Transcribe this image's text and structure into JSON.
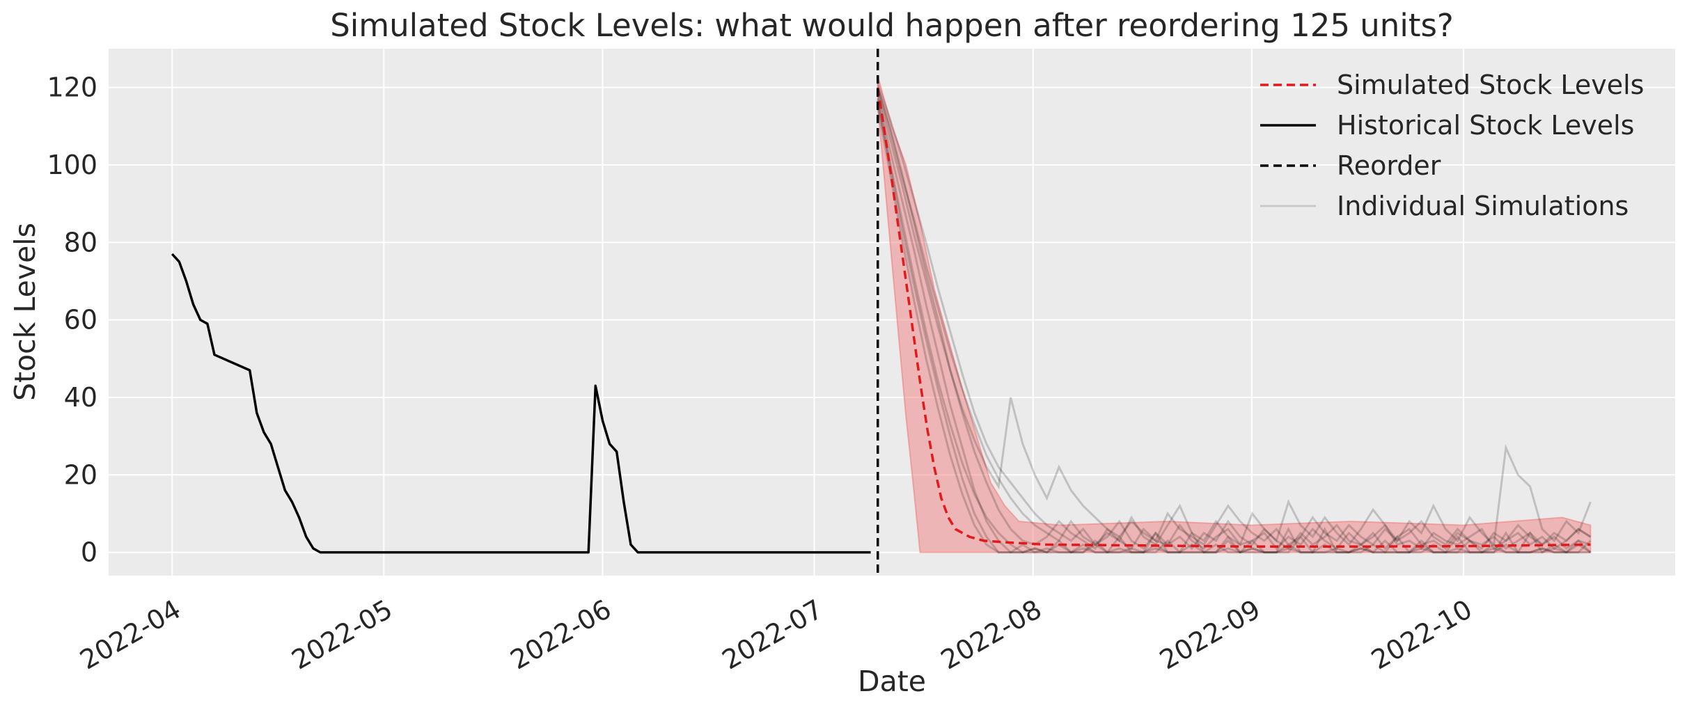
{
  "chart_data": {
    "type": "line",
    "title": "Simulated Stock Levels: what would happen after reordering 125 units?",
    "xlabel": "Date",
    "ylabel": "Stock Levels",
    "xlim": [
      "2022-03-23",
      "2022-10-31"
    ],
    "ylim": [
      -6,
      130
    ],
    "yticks": [
      0,
      20,
      40,
      60,
      80,
      100,
      120
    ],
    "xticks": [
      "2022-04-01",
      "2022-05-01",
      "2022-06-01",
      "2022-07-01",
      "2022-08-01",
      "2022-09-01",
      "2022-10-01"
    ],
    "xtick_labels": [
      "2022-04",
      "2022-05",
      "2022-06",
      "2022-07",
      "2022-08",
      "2022-09",
      "2022-10"
    ],
    "grid": true,
    "legend_position": "top-right",
    "reorder_date": "2022-07-10",
    "legend": [
      {
        "label": "Simulated Stock Levels",
        "style": "dashed",
        "color": "#e31a1c"
      },
      {
        "label": "Historical Stock Levels",
        "style": "solid",
        "color": "#000000"
      },
      {
        "label": "Reorder",
        "style": "dashed",
        "color": "#000000"
      },
      {
        "label": "Individual Simulations",
        "style": "solid",
        "color": "#bbbbbb"
      }
    ],
    "colors": {
      "simulated": "#e31a1c",
      "band": "#f08080",
      "historical": "#000000",
      "simulations": "#000000",
      "background": "#ebebeb",
      "grid": "#ffffff"
    },
    "historical": [
      [
        "2022-04-01",
        77
      ],
      [
        "2022-04-02",
        75
      ],
      [
        "2022-04-03",
        70
      ],
      [
        "2022-04-04",
        64
      ],
      [
        "2022-04-05",
        60
      ],
      [
        "2022-04-06",
        59
      ],
      [
        "2022-04-07",
        51
      ],
      [
        "2022-04-12",
        47
      ],
      [
        "2022-04-13",
        36
      ],
      [
        "2022-04-14",
        31
      ],
      [
        "2022-04-15",
        28
      ],
      [
        "2022-04-16",
        22
      ],
      [
        "2022-04-17",
        16
      ],
      [
        "2022-04-18",
        13
      ],
      [
        "2022-04-19",
        9
      ],
      [
        "2022-04-20",
        4
      ],
      [
        "2022-04-21",
        1
      ],
      [
        "2022-04-22",
        0
      ],
      [
        "2022-05-30",
        0
      ],
      [
        "2022-05-31",
        43
      ],
      [
        "2022-06-01",
        34
      ],
      [
        "2022-06-02",
        28
      ],
      [
        "2022-06-03",
        26
      ],
      [
        "2022-06-04",
        13
      ],
      [
        "2022-06-05",
        2
      ],
      [
        "2022-06-06",
        0
      ],
      [
        "2022-07-09",
        0
      ]
    ],
    "simulated_mean": [
      [
        "2022-07-10",
        120
      ],
      [
        "2022-07-11",
        108
      ],
      [
        "2022-07-12",
        96
      ],
      [
        "2022-07-13",
        83
      ],
      [
        "2022-07-14",
        70
      ],
      [
        "2022-07-15",
        57
      ],
      [
        "2022-07-16",
        44
      ],
      [
        "2022-07-17",
        32
      ],
      [
        "2022-07-18",
        22
      ],
      [
        "2022-07-19",
        14
      ],
      [
        "2022-07-20",
        9
      ],
      [
        "2022-07-21",
        6
      ],
      [
        "2022-07-23",
        4
      ],
      [
        "2022-07-25",
        3
      ],
      [
        "2022-07-29",
        2.5
      ],
      [
        "2022-08-03",
        2
      ],
      [
        "2022-08-15",
        1.8
      ],
      [
        "2022-09-01",
        1.5
      ],
      [
        "2022-09-15",
        1.5
      ],
      [
        "2022-10-01",
        1.6
      ],
      [
        "2022-10-19",
        2
      ]
    ],
    "simulated_upper": [
      [
        "2022-07-10",
        123
      ],
      [
        "2022-07-12",
        110
      ],
      [
        "2022-07-14",
        100
      ],
      [
        "2022-07-16",
        85
      ],
      [
        "2022-07-18",
        68
      ],
      [
        "2022-07-20",
        55
      ],
      [
        "2022-07-22",
        42
      ],
      [
        "2022-07-24",
        30
      ],
      [
        "2022-07-26",
        18
      ],
      [
        "2022-07-28",
        12
      ],
      [
        "2022-07-30",
        8
      ],
      [
        "2022-08-05",
        7
      ],
      [
        "2022-08-20",
        8
      ],
      [
        "2022-09-01",
        7
      ],
      [
        "2022-09-15",
        8
      ],
      [
        "2022-10-01",
        7
      ],
      [
        "2022-10-15",
        9
      ],
      [
        "2022-10-19",
        7
      ]
    ],
    "simulated_lower": [
      [
        "2022-07-10",
        115
      ],
      [
        "2022-07-11",
        95
      ],
      [
        "2022-07-12",
        75
      ],
      [
        "2022-07-13",
        55
      ],
      [
        "2022-07-14",
        35
      ],
      [
        "2022-07-15",
        18
      ],
      [
        "2022-07-16",
        0
      ],
      [
        "2022-10-19",
        0
      ]
    ],
    "individual_simulations": [
      [
        118,
        104,
        91,
        78,
        64,
        51,
        38,
        27,
        16,
        8,
        3,
        0,
        0,
        1,
        0,
        2,
        0,
        0,
        3,
        0,
        1,
        0,
        0,
        5,
        0,
        0,
        2,
        0,
        0,
        4,
        0,
        1,
        0,
        0,
        6,
        0,
        0,
        2,
        0,
        0,
        1,
        0,
        3,
        0,
        0,
        2,
        0,
        0,
        4,
        0,
        0,
        1,
        0,
        0,
        5,
        0,
        2,
        0,
        0,
        3
      ],
      [
        120,
        110,
        98,
        85,
        72,
        60,
        47,
        36,
        26,
        18,
        11,
        6,
        3,
        2,
        4,
        8,
        5,
        3,
        1,
        6,
        3,
        9,
        4,
        2,
        7,
        12,
        5,
        3,
        8,
        4,
        2,
        10,
        6,
        3,
        13,
        7,
        4,
        9,
        5,
        2,
        6,
        11,
        7,
        3,
        8,
        5,
        12,
        6,
        3,
        9,
        5,
        2,
        27,
        20,
        17,
        6,
        3,
        8,
        5,
        13
      ],
      [
        116,
        100,
        84,
        69,
        55,
        42,
        30,
        19,
        10,
        4,
        0,
        0,
        2,
        0,
        0,
        3,
        0,
        1,
        0,
        0,
        4,
        0,
        0,
        2,
        0,
        0,
        5,
        0,
        0,
        1,
        0,
        3,
        0,
        0,
        2,
        0,
        0,
        6,
        0,
        0,
        1,
        0,
        0,
        4,
        0,
        0,
        2,
        0,
        0,
        3,
        0,
        0,
        5,
        0,
        0,
        1,
        0,
        0,
        2,
        0
      ],
      [
        121,
        112,
        102,
        91,
        80,
        68,
        57,
        46,
        36,
        28,
        22,
        18,
        14,
        10,
        7,
        5,
        3,
        6,
        2,
        4,
        8,
        3,
        1,
        5,
        2,
        7,
        3,
        1,
        4,
        6,
        2,
        3,
        5,
        1,
        4,
        2,
        6,
        3,
        1,
        5,
        2,
        4,
        7,
        2,
        3,
        1,
        5,
        3,
        2,
        4,
        6,
        1,
        3,
        5,
        2,
        4,
        1,
        3,
        6,
        4
      ],
      [
        117,
        101,
        86,
        71,
        57,
        44,
        33,
        23,
        15,
        9,
        5,
        2,
        0,
        0,
        1,
        0,
        0,
        2,
        0,
        0,
        0,
        1,
        0,
        0,
        3,
        0,
        0,
        0,
        2,
        0,
        0,
        1,
        0,
        0,
        0,
        4,
        0,
        0,
        1,
        0,
        0,
        2,
        0,
        0,
        0,
        3,
        0,
        0,
        1,
        0,
        0,
        0,
        2,
        0,
        0,
        1,
        0,
        0,
        3,
        0
      ],
      [
        119,
        107,
        95,
        82,
        70,
        58,
        47,
        37,
        29,
        22,
        17,
        40,
        28,
        20,
        14,
        22,
        16,
        12,
        9,
        6,
        4,
        8,
        5,
        3,
        10,
        6,
        4,
        2,
        7,
        12,
        8,
        5,
        3,
        6,
        2,
        4,
        9,
        5,
        3,
        7,
        4,
        2,
        6,
        3,
        5,
        8,
        4,
        2,
        6,
        3,
        1,
        5,
        3,
        7,
        4,
        2,
        5,
        3,
        6,
        4
      ],
      [
        115,
        98,
        81,
        65,
        50,
        37,
        25,
        15,
        7,
        2,
        0,
        0,
        0,
        1,
        0,
        0,
        0,
        0,
        2,
        0,
        0,
        0,
        0,
        1,
        0,
        0,
        0,
        0,
        0,
        3,
        0,
        0,
        0,
        0,
        1,
        0,
        0,
        0,
        0,
        0,
        2,
        0,
        0,
        0,
        0,
        1,
        0,
        0,
        0,
        0,
        0,
        2,
        0,
        0,
        0,
        0,
        1,
        0,
        0,
        0
      ],
      [
        120,
        109,
        97,
        86,
        74,
        63,
        52,
        42,
        33,
        25,
        19,
        14,
        10,
        7,
        5,
        3,
        8,
        4,
        2,
        5,
        3,
        1,
        6,
        3,
        2,
        4,
        1,
        5,
        3,
        8,
        4,
        2,
        6,
        3,
        1,
        5,
        2,
        4,
        7,
        3,
        2,
        5,
        1,
        4,
        6,
        2,
        3,
        1,
        5,
        3,
        2,
        4,
        1,
        3,
        5,
        2,
        4,
        1,
        3,
        2
      ]
    ]
  }
}
